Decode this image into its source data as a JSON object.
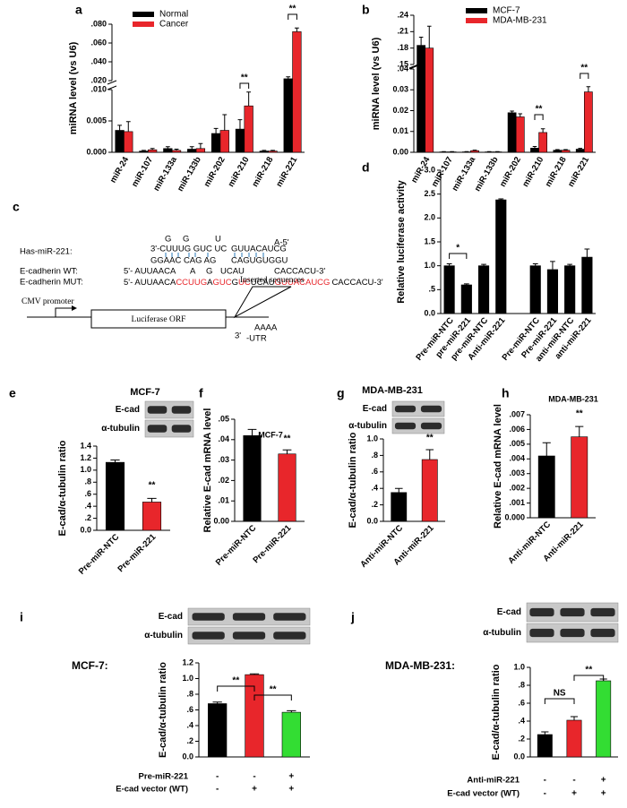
{
  "chart_data": [
    {
      "type": "bar",
      "panel": "a",
      "ylabel": "miRNA level (vs U6)",
      "categories": [
        "miR-24",
        "miR-107",
        "miR-133a",
        "miR-133b",
        "miR-202",
        "miR-210",
        "miR-218",
        "miR-221"
      ],
      "series": [
        {
          "name": "Normal",
          "color": "#000000",
          "values": [
            0.0035,
            0.0002,
            0.0006,
            0.0005,
            0.003,
            0.0037,
            0.0002,
            0.022
          ],
          "errors": [
            0.0008,
            0.0001,
            0.0003,
            0.0004,
            0.0008,
            0.0015,
            0.0001,
            0.002
          ]
        },
        {
          "name": "Cancer",
          "color": "#e8262b",
          "values": [
            0.0033,
            0.0004,
            0.0003,
            0.0006,
            0.0035,
            0.0074,
            0.0002,
            0.072
          ],
          "errors": [
            0.0016,
            0.0002,
            0.0002,
            0.0008,
            0.0025,
            0.0022,
            0.0001,
            0.004
          ]
        }
      ],
      "ylim": [
        0,
        0.08
      ],
      "axis_break": [
        0.01,
        0.02
      ],
      "yticks": [
        {
          "value": 0,
          "label": "0.000"
        },
        {
          "value": 0.005,
          "label": "0.005"
        },
        {
          "value": 0.01,
          "label": ".010"
        },
        {
          "value": 0.02,
          "label": ".020"
        },
        {
          "value": 0.04,
          "label": ".040"
        },
        {
          "value": 0.06,
          "label": ".060"
        },
        {
          "value": 0.08,
          "label": ".080"
        }
      ],
      "annotations": [
        "**",
        "**"
      ]
    },
    {
      "type": "bar",
      "panel": "b",
      "ylabel": "miRNA level (vs U6)",
      "categories": [
        "miR-24",
        "miR-107",
        "miR-133a",
        "miR-133b",
        "miR-202",
        "miR-210",
        "miR-218",
        "miR-221"
      ],
      "series": [
        {
          "name": "MCF-7",
          "color": "#000000",
          "values": [
            0.185,
            0.0002,
            0.0002,
            0.0002,
            0.019,
            0.002,
            0.001,
            0.0015
          ],
          "errors": [
            0.015,
            0.0001,
            0.0001,
            0.0001,
            0.0008,
            0.0008,
            0.0003,
            0.0004
          ]
        },
        {
          "name": "MDA-MB-231",
          "color": "#e8262b",
          "values": [
            0.18,
            0.0002,
            0.0008,
            0.0002,
            0.017,
            0.0095,
            0.001,
            0.029
          ],
          "errors": [
            0.04,
            0.0001,
            0.0002,
            0.0001,
            0.0015,
            0.0018,
            0.0003,
            0.0025
          ]
        }
      ],
      "ylim": [
        0,
        0.24
      ],
      "axis_break": [
        0.04,
        0.15
      ],
      "yticks": [
        {
          "value": 0,
          "label": "0.00"
        },
        {
          "value": 0.01,
          "label": "0.01"
        },
        {
          "value": 0.02,
          "label": "0.02"
        },
        {
          "value": 0.03,
          "label": "0.03"
        },
        {
          "value": 0.04,
          "label": ".04"
        },
        {
          "value": 0.15,
          "label": ".15"
        },
        {
          "value": 0.18,
          "label": ".18"
        },
        {
          "value": 0.21,
          "label": ".21"
        },
        {
          "value": 0.24,
          "label": ".24"
        }
      ],
      "annotations": [
        "**",
        "**"
      ]
    },
    {
      "type": "bar",
      "panel": "d",
      "ylabel": "Relative luciferase activity",
      "categories": [
        "Pre-miR-NTC",
        "pre-miR-221",
        "pre-miR-NTC",
        "Anti-miR-221",
        null,
        "Pre-miR-NTC",
        "Pre-miR-221",
        "anti-miR-NTC",
        "anti-miR-221"
      ],
      "values": [
        1.0,
        0.6,
        1.0,
        2.38,
        null,
        1.0,
        0.92,
        1.0,
        1.18
      ],
      "errors": [
        0.04,
        0.02,
        0.03,
        0.02,
        null,
        0.04,
        0.17,
        0.03,
        0.17
      ],
      "color": "#000000",
      "ylim": [
        0,
        3
      ],
      "yticks": [
        {
          "value": 0,
          "label": "0.0"
        },
        {
          "value": 0.5,
          "label": ".5"
        },
        {
          "value": 1,
          "label": "1.0"
        },
        {
          "value": 1.5,
          "label": "1.5"
        },
        {
          "value": 2,
          "label": "2.0"
        },
        {
          "value": 2.5,
          "label": "2.5"
        },
        {
          "value": 3,
          "label": "3.0"
        }
      ],
      "annotations": [
        "*"
      ]
    },
    {
      "type": "bar",
      "panel": "e",
      "title": "MCF-7",
      "blot": [
        "E-cad",
        "α-tubulin"
      ],
      "ylabel": "E-cad/α-tubulin ratio",
      "categories": [
        "Pre-miR-NTC",
        "Pre-miR-221"
      ],
      "values": [
        1.13,
        0.47
      ],
      "errors": [
        0.04,
        0.06
      ],
      "colors": [
        "#000000",
        "#e8262b"
      ],
      "ylim": [
        0,
        1.4
      ],
      "yticks": [
        {
          "value": 0,
          "label": "0.0"
        },
        {
          "value": 0.2,
          "label": ".2"
        },
        {
          "value": 0.4,
          "label": ".4"
        },
        {
          "value": 0.6,
          "label": ".6"
        },
        {
          "value": 0.8,
          "label": ".8"
        },
        {
          "value": 1,
          "label": "1.0"
        },
        {
          "value": 1.2,
          "label": "1.2"
        },
        {
          "value": 1.4,
          "label": "1.4"
        }
      ],
      "annotations": [
        "**"
      ]
    },
    {
      "type": "bar",
      "panel": "f",
      "title": "MCF-7",
      "ylabel": "Relative E-cad mRNA level",
      "categories": [
        "Pre-miR-NTC",
        "Pre-miR-221"
      ],
      "values": [
        0.042,
        0.033
      ],
      "errors": [
        0.003,
        0.002
      ],
      "colors": [
        "#000000",
        "#e8262b"
      ],
      "ylim": [
        0,
        0.05
      ],
      "yticks": [
        {
          "value": 0,
          "label": "0.00"
        },
        {
          "value": 0.01,
          "label": ".01"
        },
        {
          "value": 0.02,
          "label": ".02"
        },
        {
          "value": 0.03,
          "label": ".03"
        },
        {
          "value": 0.04,
          "label": ".04"
        },
        {
          "value": 0.05,
          "label": ".05"
        }
      ],
      "annotations": [
        "**"
      ]
    },
    {
      "type": "bar",
      "panel": "g",
      "title": "MDA-MB-231",
      "blot": [
        "E-cad",
        "α-tubulin"
      ],
      "ylabel": "E-cad/α-tubulin ratio",
      "categories": [
        "Anti-miR-NTC",
        "Anti-miR-221"
      ],
      "values": [
        0.35,
        0.75
      ],
      "errors": [
        0.05,
        0.12
      ],
      "colors": [
        "#000000",
        "#e8262b"
      ],
      "ylim": [
        0,
        1
      ],
      "yticks": [
        {
          "value": 0,
          "label": "0.0"
        },
        {
          "value": 0.2,
          "label": ".2"
        },
        {
          "value": 0.4,
          "label": ".4"
        },
        {
          "value": 0.6,
          "label": ".6"
        },
        {
          "value": 0.8,
          "label": ".8"
        },
        {
          "value": 1,
          "label": "1.0"
        }
      ],
      "annotations": [
        "**"
      ]
    },
    {
      "type": "bar",
      "panel": "h",
      "title": "MDA-MB-231",
      "ylabel": "Relative E-cad mRNA level",
      "categories": [
        "Anti-miR-NTC",
        "Anti-miR-221"
      ],
      "values": [
        0.0042,
        0.0055
      ],
      "errors": [
        0.0009,
        0.0007
      ],
      "colors": [
        "#000000",
        "#e8262b"
      ],
      "ylim": [
        0,
        0.007
      ],
      "yticks": [
        {
          "value": 0,
          "label": "0.000"
        },
        {
          "value": 0.001,
          "label": ".001"
        },
        {
          "value": 0.002,
          "label": ".002"
        },
        {
          "value": 0.003,
          "label": ".003"
        },
        {
          "value": 0.004,
          "label": ".004"
        },
        {
          "value": 0.005,
          "label": ".005"
        },
        {
          "value": 0.006,
          "label": ".006"
        },
        {
          "value": 0.007,
          "label": ".007"
        }
      ],
      "annotations": [
        "**"
      ]
    },
    {
      "type": "bar",
      "panel": "i",
      "side_label": "MCF-7:",
      "blot": [
        "E-cad",
        "α-tubulin"
      ],
      "ylabel": "E-cad/α-tubulin ratio",
      "values": [
        0.68,
        1.05,
        0.57
      ],
      "errors": [
        0.02,
        0.01,
        0.02
      ],
      "colors": [
        "#000000",
        "#e8262b",
        "#33dd33"
      ],
      "ylim": [
        0,
        1.2
      ],
      "yticks": [
        {
          "value": 0,
          "label": "0.0"
        },
        {
          "value": 0.2,
          "label": ".2"
        },
        {
          "value": 0.4,
          "label": ".4"
        },
        {
          "value": 0.6,
          "label": ".6"
        },
        {
          "value": 0.8,
          "label": ".8"
        },
        {
          "value": 1,
          "label": "1.0"
        },
        {
          "value": 1.2,
          "label": "1.2"
        }
      ],
      "conditions": [
        {
          "label": "Pre-miR-221",
          "marks": [
            "-",
            "-",
            "+"
          ]
        },
        {
          "label": "E-cad vector (WT)",
          "marks": [
            "-",
            "+",
            "+"
          ]
        }
      ],
      "annotations": [
        "**",
        "**"
      ]
    },
    {
      "type": "bar",
      "panel": "j",
      "side_label": "MDA-MB-231:",
      "blot": [
        "E-cad",
        "α-tubulin"
      ],
      "ylabel": "E-cad/α-tubulin ratio",
      "values": [
        0.25,
        0.41,
        0.85
      ],
      "errors": [
        0.03,
        0.04,
        0.02
      ],
      "colors": [
        "#000000",
        "#e8262b",
        "#33dd33"
      ],
      "ylim": [
        0,
        1
      ],
      "yticks": [
        {
          "value": 0,
          "label": "0.0"
        },
        {
          "value": 0.2,
          "label": ".2"
        },
        {
          "value": 0.4,
          "label": ".4"
        },
        {
          "value": 0.6,
          "label": ".6"
        },
        {
          "value": 0.8,
          "label": ".8"
        },
        {
          "value": 1,
          "label": "1.0"
        }
      ],
      "conditions": [
        {
          "label": "Anti-miR-221",
          "marks": [
            "-",
            "-",
            "+"
          ]
        },
        {
          "label": "E-cad vector (WT)",
          "marks": [
            "-",
            "+",
            "+"
          ]
        }
      ],
      "annotations": [
        "NS",
        "**"
      ]
    }
  ],
  "diagram": {
    "panel": "c",
    "mir_label": "Has-miR-221:",
    "bulges": [
      "G",
      "G",
      "U"
    ],
    "mir_line1": [
      "3'-CUUUG GUC UC",
      "GUUACAUCG",
      "A-5'"
    ],
    "mir_line2": [
      "GGAAC CAG AG",
      "CAGUGUGGU"
    ],
    "wt_label": "E-cadherin WT:",
    "wt": [
      "5'- AUUAACA",
      "A",
      "G",
      "UCAU",
      "CACCACU-3'"
    ],
    "mut_label": "E-cadherin MUT:",
    "mut": [
      "5'- AUUAACA",
      "CCUUG",
      "A",
      "GUC",
      "G",
      "UC",
      "UCAU",
      "GUUACAUCG",
      "CACCACU-3'"
    ],
    "promoter": "CMV promoter",
    "orf": "Luciferase ORF",
    "insert": "Inserted sequences",
    "utr": [
      "3'",
      "-UTR"
    ],
    "polya": "AAAA"
  }
}
